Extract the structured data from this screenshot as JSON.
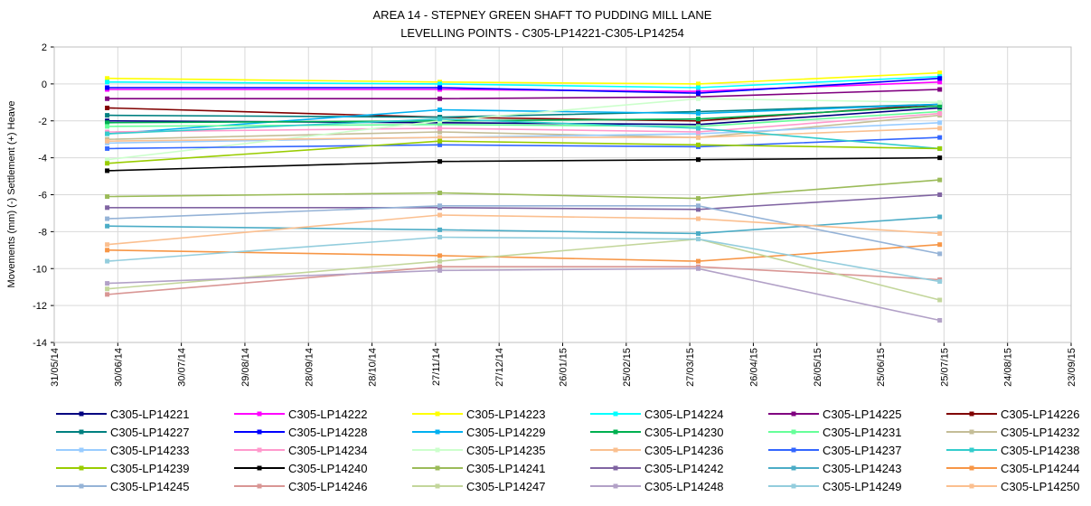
{
  "chart_data": {
    "type": "line",
    "title": "AREA 14 - STEPNEY GREEN SHAFT TO PUDDING MILL LANE",
    "subtitle": "LEVELLING POINTS -  C305-LP14221-C305-LP14254",
    "y_label": "Movements (mm) (-) Settlement (+) Heave",
    "x": [
      "25/06/14",
      "29/11/14",
      "31/03/15",
      "23/07/15"
    ],
    "xlim": [
      "31/05/14",
      "23/09/15"
    ],
    "xticks": [
      "31/05/14",
      "30/06/14",
      "30/07/14",
      "29/08/14",
      "28/09/14",
      "28/10/14",
      "27/11/14",
      "27/12/14",
      "26/01/15",
      "25/02/15",
      "27/03/15",
      "26/04/15",
      "26/05/15",
      "25/06/15",
      "25/07/15",
      "24/08/15",
      "23/09/15"
    ],
    "ylim": [
      -14,
      2
    ],
    "yticks": [
      -14,
      -12,
      -10,
      -8,
      -6,
      -4,
      -2,
      0,
      2
    ],
    "grid": true,
    "legend": "bottom",
    "series": [
      {
        "name": "C305-LP14221",
        "color": "#000080",
        "values": [
          -2.0,
          -2.1,
          -2.2,
          -1.3
        ]
      },
      {
        "name": "C305-LP14222",
        "color": "#ff00ff",
        "values": [
          -0.3,
          -0.3,
          -0.4,
          0.1
        ]
      },
      {
        "name": "C305-LP14223",
        "color": "#ffff00",
        "values": [
          0.3,
          0.1,
          0.0,
          0.6
        ]
      },
      {
        "name": "C305-LP14224",
        "color": "#00ffff",
        "values": [
          0.1,
          0.0,
          -0.2,
          0.4
        ]
      },
      {
        "name": "C305-LP14225",
        "color": "#800080",
        "values": [
          -0.8,
          -0.8,
          -0.7,
          -0.3
        ]
      },
      {
        "name": "C305-LP14226",
        "color": "#800000",
        "values": [
          -1.3,
          -1.8,
          -2.0,
          -1.1
        ]
      },
      {
        "name": "C305-LP14227",
        "color": "#008080",
        "values": [
          -1.7,
          -1.8,
          -1.5,
          -1.1
        ]
      },
      {
        "name": "C305-LP14228",
        "color": "#0000ff",
        "values": [
          -0.2,
          -0.2,
          -0.5,
          0.3
        ]
      },
      {
        "name": "C305-LP14229",
        "color": "#00b0f0",
        "values": [
          -2.7,
          -1.4,
          -1.6,
          -1.1
        ]
      },
      {
        "name": "C305-LP14230",
        "color": "#00b050",
        "values": [
          -2.1,
          -2.0,
          -1.9,
          -1.2
        ]
      },
      {
        "name": "C305-LP14231",
        "color": "#66ff99",
        "values": [
          -2.3,
          -2.2,
          -2.3,
          -1.5
        ]
      },
      {
        "name": "C305-LP14232",
        "color": "#c4bd97",
        "values": [
          -3.0,
          -2.6,
          -2.9,
          -1.7
        ]
      },
      {
        "name": "C305-LP14233",
        "color": "#99ccff",
        "values": [
          -3.2,
          -2.9,
          -2.7,
          -2.1
        ]
      },
      {
        "name": "C305-LP14234",
        "color": "#ff99cc",
        "values": [
          -2.6,
          -2.4,
          -2.6,
          -1.6
        ]
      },
      {
        "name": "C305-LP14235",
        "color": "#ccffcc",
        "values": [
          -4.1,
          -2.0,
          -0.8,
          -1.0
        ]
      },
      {
        "name": "C305-LP14236",
        "color": "#fac090",
        "values": [
          -3.1,
          -2.9,
          -2.9,
          -2.4
        ]
      },
      {
        "name": "C305-LP14237",
        "color": "#3366ff",
        "values": [
          -3.5,
          -3.3,
          -3.4,
          -2.9
        ]
      },
      {
        "name": "C305-LP14238",
        "color": "#33cccc",
        "values": [
          -2.7,
          -1.9,
          -2.4,
          -3.5
        ]
      },
      {
        "name": "C305-LP14239",
        "color": "#99cc00",
        "values": [
          -4.3,
          -3.1,
          -3.3,
          -3.5
        ]
      },
      {
        "name": "C305-LP14240",
        "color": "#000000",
        "values": [
          -4.7,
          -4.2,
          -4.1,
          -4.0
        ]
      },
      {
        "name": "C305-LP14241",
        "color": "#9bbb59",
        "values": [
          -6.1,
          -5.9,
          -6.2,
          -5.2
        ]
      },
      {
        "name": "C305-LP14242",
        "color": "#8064a2",
        "values": [
          -6.7,
          -6.7,
          -6.8,
          -6.0
        ]
      },
      {
        "name": "C305-LP14243",
        "color": "#4bacc6",
        "values": [
          -7.7,
          -7.9,
          -8.1,
          -7.2
        ]
      },
      {
        "name": "C305-LP14244",
        "color": "#f79646",
        "values": [
          -9.0,
          -9.3,
          -9.6,
          -8.7
        ]
      },
      {
        "name": "C305-LP14245",
        "color": "#95b3d7",
        "values": [
          -7.3,
          -6.6,
          -6.6,
          -9.2
        ]
      },
      {
        "name": "C305-LP14246",
        "color": "#d99694",
        "values": [
          -11.4,
          -9.9,
          -9.9,
          -10.6
        ]
      },
      {
        "name": "C305-LP14247",
        "color": "#c3d69b",
        "values": [
          -11.1,
          -9.6,
          -8.4,
          -11.7
        ]
      },
      {
        "name": "C305-LP14248",
        "color": "#b2a1c7",
        "values": [
          -10.8,
          -10.1,
          -10.0,
          -12.8
        ]
      },
      {
        "name": "C305-LP14249",
        "color": "#93cddd",
        "values": [
          -9.6,
          -8.3,
          -8.4,
          -10.7
        ]
      },
      {
        "name": "C305-LP14250",
        "color": "#fbbf8f",
        "values": [
          -8.7,
          -7.1,
          -7.3,
          -8.1
        ]
      }
    ]
  }
}
